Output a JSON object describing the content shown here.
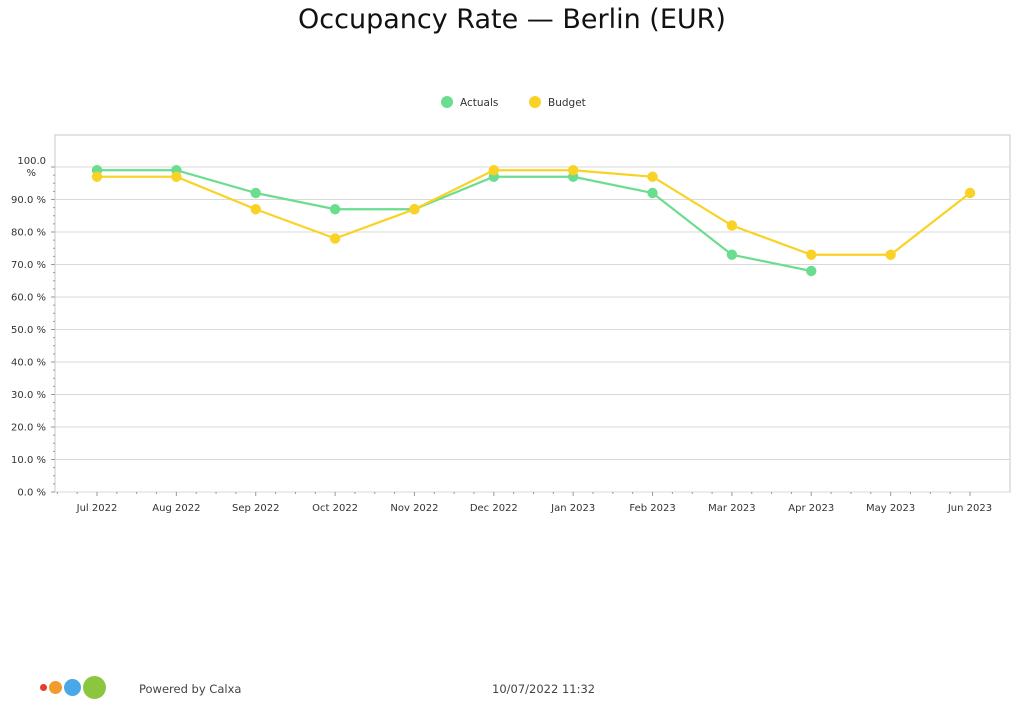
{
  "chart_data": {
    "type": "line",
    "title": "Occupancy Rate — Berlin (EUR)",
    "categories": [
      "Jul 2022",
      "Aug 2022",
      "Sep 2022",
      "Oct 2022",
      "Nov 2022",
      "Dec 2022",
      "Jan 2023",
      "Feb 2023",
      "Mar 2023",
      "Apr 2023",
      "May 2023",
      "Jun 2023"
    ],
    "series": [
      {
        "name": "Actuals",
        "color": "#6bdd8f",
        "values": [
          99,
          99,
          92,
          87,
          87,
          97,
          97,
          92,
          73,
          68,
          null,
          null
        ]
      },
      {
        "name": "Budget",
        "color": "#f9d225",
        "values": [
          97,
          97,
          87,
          78,
          87,
          99,
          99,
          97,
          82,
          73,
          73,
          92
        ]
      }
    ],
    "ylim": [
      0,
      100
    ],
    "yticks": [
      {
        "value": 0,
        "label": "0.0 %"
      },
      {
        "value": 10,
        "label": "10.0 %"
      },
      {
        "value": 20,
        "label": "20.0 %"
      },
      {
        "value": 30,
        "label": "30.0 %"
      },
      {
        "value": 40,
        "label": "40.0 %"
      },
      {
        "value": 50,
        "label": "50.0 %"
      },
      {
        "value": 60,
        "label": "60.0 %"
      },
      {
        "value": 70,
        "label": "70.0 %"
      },
      {
        "value": 80,
        "label": "80.0 %"
      },
      {
        "value": 90,
        "label": "90.0 %"
      },
      {
        "value": 100,
        "label": "100.0 %"
      }
    ],
    "grid": true,
    "legend_position": "top-center"
  },
  "footer": {
    "powered_by": "Powered by Calxa",
    "timestamp": "10/07/2022 11:32",
    "logo_colors": [
      "#e63b2e",
      "#f29b2f",
      "#4aa8e8",
      "#8cc63f"
    ]
  }
}
